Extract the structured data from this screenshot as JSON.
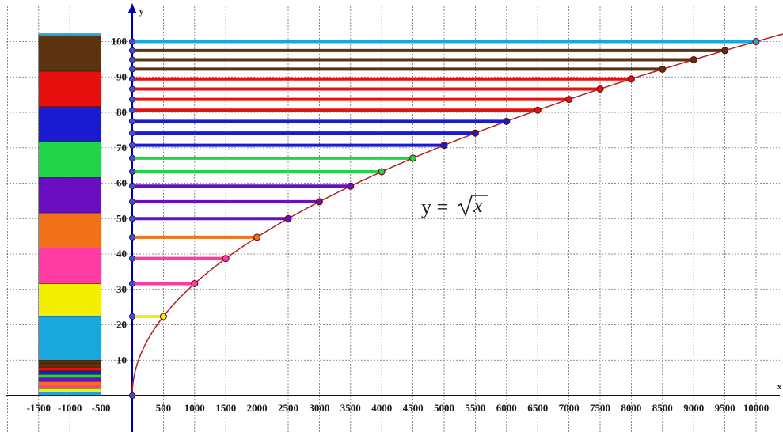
{
  "chart_data": {
    "type": "line",
    "title": "",
    "xlabel": "x",
    "ylabel": "y",
    "xlim": [
      -2000,
      10500
    ],
    "ylim": [
      -4,
      110
    ],
    "grid": true,
    "formula": {
      "lhs": "y = ",
      "var": "x"
    },
    "x_ticks": [
      -1500,
      -1000,
      -500,
      500,
      1000,
      1500,
      2000,
      2500,
      3000,
      3500,
      4000,
      4500,
      5000,
      5500,
      6000,
      6500,
      7000,
      7500,
      8000,
      8500,
      9000,
      9500,
      10000
    ],
    "x_tick_labels": [
      "-1500",
      "-1000",
      "-500",
      "500",
      "1000",
      "1500",
      "2000",
      "2500",
      "3000",
      "3500",
      "4000",
      "4500",
      "5000",
      "5500",
      "6000",
      "6500",
      "7000",
      "7500",
      "8000",
      "8500",
      "9000",
      "9500",
      "10000"
    ],
    "y_ticks": [
      10,
      20,
      30,
      40,
      50,
      60,
      70,
      80,
      90,
      100
    ],
    "y_tick_labels": [
      "10",
      "20",
      "30",
      "40",
      "50",
      "60",
      "70",
      "80",
      "90",
      "100"
    ],
    "curve": {
      "function": "sqrt",
      "x_range": [
        0,
        10500
      ],
      "color": "#b22222"
    },
    "points": [
      {
        "x": 0,
        "y": 0,
        "color": "#2a2ad0"
      },
      {
        "x": 500,
        "y": 22.36,
        "color": "#f2ef00"
      },
      {
        "x": 1000,
        "y": 31.62,
        "color": "#ff3aa0"
      },
      {
        "x": 1500,
        "y": 38.73,
        "color": "#ff3aa0"
      },
      {
        "x": 2000,
        "y": 44.72,
        "color": "#f27018"
      },
      {
        "x": 2500,
        "y": 50.0,
        "color": "#6a0fc0"
      },
      {
        "x": 3000,
        "y": 54.77,
        "color": "#6a0fc0"
      },
      {
        "x": 3500,
        "y": 59.16,
        "color": "#6a0fc0"
      },
      {
        "x": 4000,
        "y": 63.25,
        "color": "#22d44a"
      },
      {
        "x": 4500,
        "y": 67.08,
        "color": "#22d44a"
      },
      {
        "x": 5000,
        "y": 70.71,
        "color": "#1a1ad0"
      },
      {
        "x": 5500,
        "y": 74.16,
        "color": "#1a1ad0"
      },
      {
        "x": 6000,
        "y": 77.46,
        "color": "#1a1ad0"
      },
      {
        "x": 6500,
        "y": 80.62,
        "color": "#e80f0f"
      },
      {
        "x": 7000,
        "y": 83.67,
        "color": "#e80f0f"
      },
      {
        "x": 7500,
        "y": 86.6,
        "color": "#e80f0f"
      },
      {
        "x": 8000,
        "y": 89.44,
        "color": "#e80f0f"
      },
      {
        "x": 8500,
        "y": 92.2,
        "color": "#5c3310"
      },
      {
        "x": 9000,
        "y": 94.87,
        "color": "#5c3310"
      },
      {
        "x": 9500,
        "y": 97.47,
        "color": "#5c3310"
      },
      {
        "x": 10000,
        "y": 100.0,
        "color": "#1aa8dc"
      }
    ],
    "color_bar": {
      "x_range": [
        -1500,
        -500
      ],
      "bands": [
        {
          "y0": 0,
          "y1": 1,
          "color": "#1aa8dc"
        },
        {
          "y0": 1,
          "y1": 2,
          "color": "#f2ef00"
        },
        {
          "y0": 2,
          "y1": 3,
          "color": "#ff3aa0"
        },
        {
          "y0": 3,
          "y1": 4,
          "color": "#f27018"
        },
        {
          "y0": 4,
          "y1": 5,
          "color": "#6a0fc0"
        },
        {
          "y0": 5,
          "y1": 6,
          "color": "#22d44a"
        },
        {
          "y0": 6,
          "y1": 7,
          "color": "#1a1ad0"
        },
        {
          "y0": 7,
          "y1": 8,
          "color": "#e80f0f"
        },
        {
          "y0": 8,
          "y1": 9,
          "color": "#5c3310"
        },
        {
          "y0": 9,
          "y1": 10,
          "color": "#5c3310"
        },
        {
          "y0": 10,
          "y1": 22.36,
          "color": "#1aa8dc"
        },
        {
          "y0": 22.36,
          "y1": 31.62,
          "color": "#f2ef00"
        },
        {
          "y0": 31.62,
          "y1": 41.73,
          "color": "#ff3aa0"
        },
        {
          "y0": 41.73,
          "y1": 51.62,
          "color": "#f27018"
        },
        {
          "y0": 51.62,
          "y1": 61.62,
          "color": "#6a0fc0"
        },
        {
          "y0": 61.62,
          "y1": 71.62,
          "color": "#22d44a"
        },
        {
          "y0": 71.62,
          "y1": 81.62,
          "color": "#1a1ad0"
        },
        {
          "y0": 81.62,
          "y1": 91.62,
          "color": "#e80f0f"
        },
        {
          "y0": 91.62,
          "y1": 101.62,
          "color": "#5c3310"
        },
        {
          "y0": 101.62,
          "y1": 102.2,
          "color": "#1aa8dc"
        }
      ]
    }
  }
}
